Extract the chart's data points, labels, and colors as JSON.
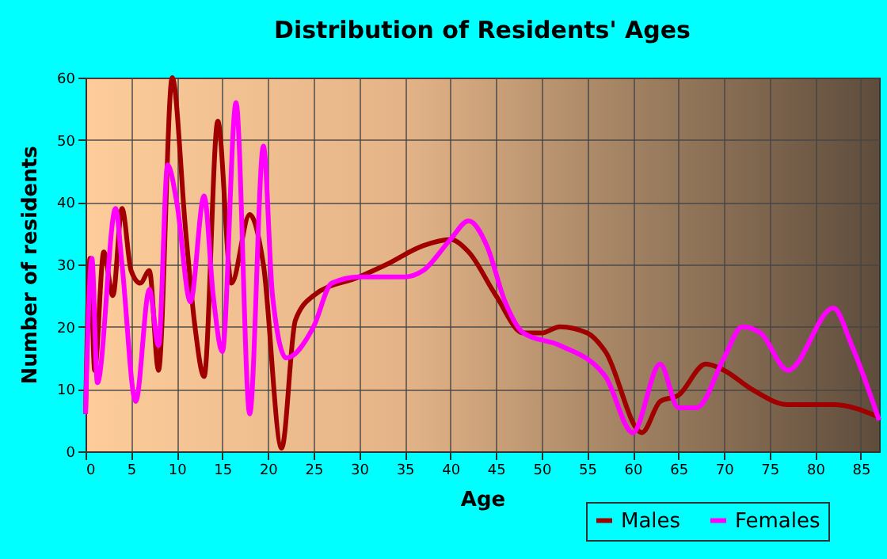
{
  "chart_data": {
    "type": "line",
    "title": "Distribution of Residents' Ages",
    "xlabel": "Age",
    "ylabel": "Number of residents",
    "xlim": [
      0,
      87
    ],
    "xticks": [
      0,
      5,
      10,
      15,
      20,
      25,
      30,
      35,
      40,
      45,
      50,
      55,
      60,
      65,
      70,
      75,
      80,
      85
    ],
    "ylim": [
      0,
      60
    ],
    "yticks": [
      0,
      10,
      20,
      30,
      40,
      50,
      60
    ],
    "grid": true,
    "legend": "bottom right",
    "marker": "none",
    "line_style": "solid",
    "series": [
      {
        "name": "Males",
        "color": "#a00000",
        "x": [
          0,
          0.5,
          1,
          2,
          3,
          4,
          5,
          6,
          7,
          8,
          9.5,
          11,
          12,
          13,
          14.5,
          16,
          18,
          19.5,
          21.5,
          23,
          25,
          30,
          33,
          37,
          40,
          42,
          45,
          48,
          50,
          52,
          55,
          57,
          61,
          63,
          65,
          68,
          70,
          73,
          77,
          82,
          87
        ],
        "values": [
          6,
          31,
          13,
          32,
          25,
          39,
          29,
          27,
          29,
          13,
          60,
          35,
          20,
          12,
          53,
          27,
          38,
          30,
          0.5,
          21,
          25,
          28,
          30,
          33,
          34,
          32,
          25,
          19,
          19,
          20,
          19,
          16,
          3,
          8,
          9,
          14,
          13,
          10,
          7.5,
          7.5,
          5.5
        ]
      },
      {
        "name": "Females",
        "color": "#ff00ff",
        "x": [
          0,
          0.7,
          1.3,
          3.3,
          4,
          5.5,
          7,
          8,
          9,
          10,
          11.5,
          13,
          14,
          15,
          16.5,
          18,
          19.5,
          20.5,
          22,
          25,
          27,
          30,
          35,
          37,
          40,
          42,
          44,
          46,
          48,
          52,
          57,
          60,
          63,
          65,
          67,
          70,
          72,
          74,
          77,
          82,
          84,
          87
        ],
        "values": [
          6,
          31,
          11,
          39,
          30,
          8,
          26,
          17,
          46,
          40,
          24,
          41,
          25,
          16,
          56,
          6,
          49,
          25,
          15,
          20,
          27,
          28,
          28,
          29,
          34,
          37,
          33,
          24,
          19,
          17,
          12,
          3,
          14,
          7,
          7,
          15,
          20,
          19,
          13,
          23,
          17,
          5
        ]
      }
    ]
  }
}
